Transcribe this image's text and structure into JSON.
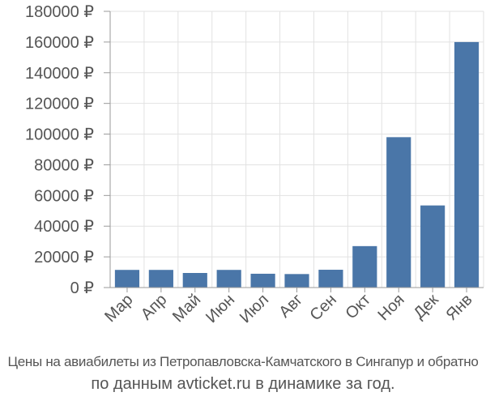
{
  "colors": {
    "bar": "#4a76a8",
    "grid": "#e2e2e2",
    "axis": "#9a9a9a",
    "text": "#555555"
  },
  "caption": {
    "line1": "Цены на авиабилеты из Петропавловска-Камчатского в Сингапур и обратно",
    "line2": "по данным avticket.ru в динамике за год."
  },
  "chart_data": {
    "type": "bar",
    "categories": [
      "Мар",
      "Апр",
      "Май",
      "Июн",
      "Июл",
      "Авг",
      "Сен",
      "Окт",
      "Ноя",
      "Дек",
      "Янв"
    ],
    "values": [
      11500,
      11500,
      9500,
      11500,
      9000,
      8800,
      11600,
      27000,
      98000,
      53500,
      160000
    ],
    "ylim": [
      0,
      180000
    ],
    "yticks": [
      0,
      20000,
      40000,
      60000,
      80000,
      100000,
      120000,
      140000,
      160000,
      180000
    ],
    "ytick_labels": [
      "0 ₽",
      "20000 ₽",
      "40000 ₽",
      "60000 ₽",
      "80000 ₽",
      "100000 ₽",
      "120000 ₽",
      "140000 ₽",
      "160000 ₽",
      "180000 ₽"
    ],
    "grid": true,
    "title": "",
    "xlabel": "",
    "ylabel": ""
  }
}
